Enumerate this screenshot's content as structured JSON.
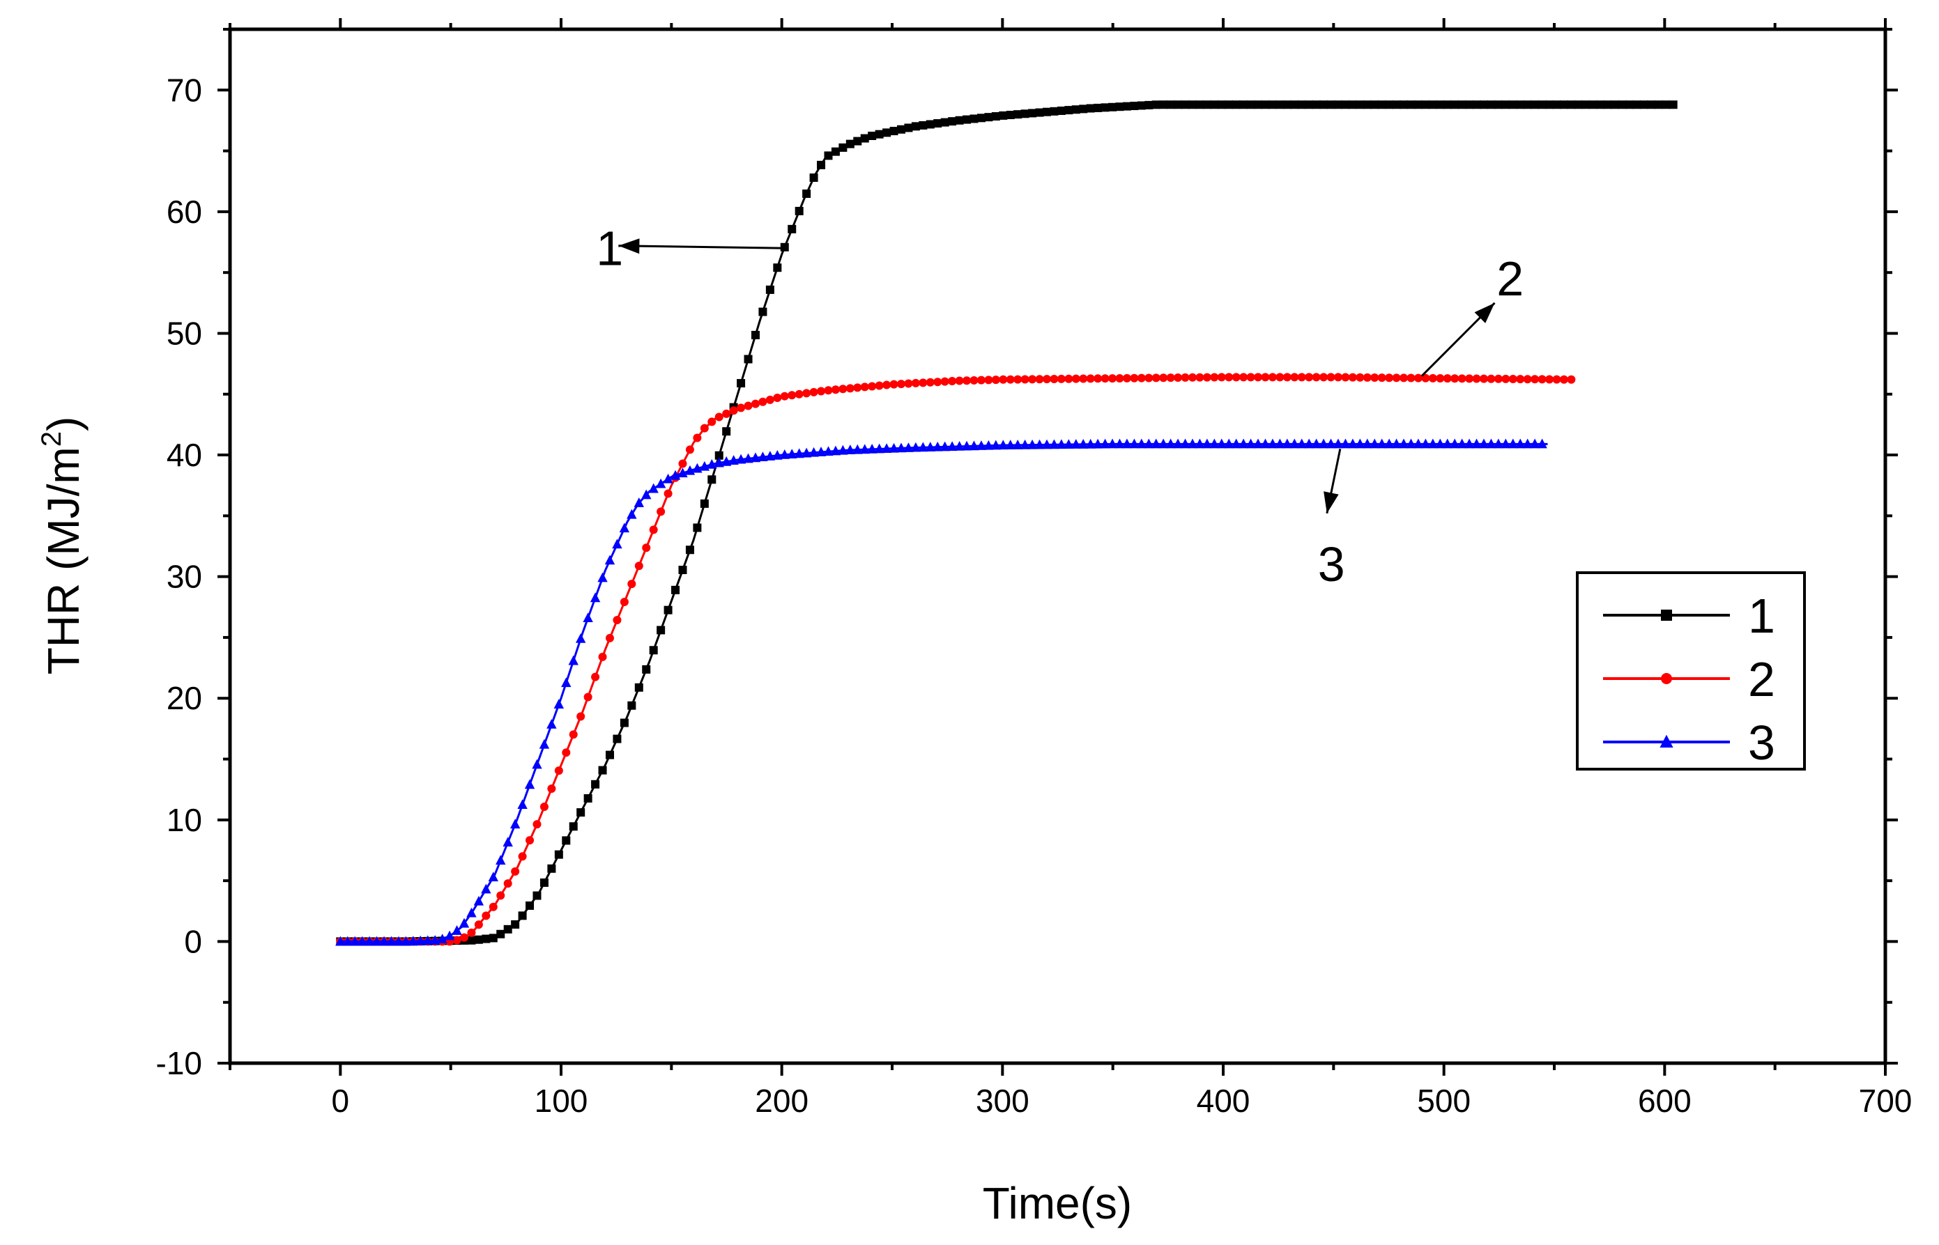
{
  "chart_data": {
    "type": "line",
    "title": "",
    "xlabel": "Time(s)",
    "ylabel_main": "THR (MJ/m",
    "ylabel_sup": "2",
    "ylabel_close": ")",
    "xlim": [
      -50,
      700
    ],
    "ylim": [
      -10,
      75
    ],
    "x_ticks": [
      0,
      100,
      200,
      300,
      400,
      500,
      600,
      700
    ],
    "y_ticks": [
      -10,
      0,
      10,
      20,
      30,
      40,
      50,
      60,
      70
    ],
    "x_tick_labels": [
      "0",
      "100",
      "200",
      "300",
      "400",
      "500",
      "600",
      "700"
    ],
    "y_tick_labels": [
      "-10",
      "0",
      "10",
      "20",
      "30",
      "40",
      "50",
      "60",
      "70"
    ],
    "legend_position": "right",
    "series": [
      {
        "name": "1",
        "color": "#000000",
        "marker": "square",
        "x": [
          0,
          30,
          60,
          70,
          80,
          90,
          100,
          110,
          120,
          130,
          140,
          150,
          160,
          170,
          180,
          190,
          200,
          210,
          215,
          220,
          230,
          240,
          260,
          280,
          300,
          320,
          340,
          360,
          370,
          400,
          450,
          500,
          550,
          605
        ],
        "y": [
          0,
          0,
          0.1,
          0.3,
          1.5,
          4,
          7.5,
          11,
          14.5,
          18.5,
          23,
          28,
          33,
          39,
          45,
          51,
          56.5,
          61,
          63,
          64.5,
          65.5,
          66.2,
          67,
          67.5,
          67.9,
          68.2,
          68.5,
          68.7,
          68.8,
          68.8,
          68.8,
          68.8,
          68.8,
          68.8
        ]
      },
      {
        "name": "2",
        "color": "#ff0000",
        "marker": "circle",
        "x": [
          0,
          30,
          50,
          55,
          60,
          70,
          80,
          90,
          100,
          110,
          120,
          130,
          140,
          150,
          160,
          165,
          170,
          180,
          190,
          200,
          220,
          250,
          280,
          300,
          350,
          400,
          450,
          500,
          558
        ],
        "y": [
          0,
          0,
          0,
          0.2,
          0.8,
          3,
          6,
          10,
          14.5,
          19,
          24,
          28.5,
          33,
          37.5,
          41,
          42.2,
          43,
          43.8,
          44.3,
          44.8,
          45.3,
          45.8,
          46.1,
          46.2,
          46.3,
          46.4,
          46.4,
          46.3,
          46.2
        ]
      },
      {
        "name": "3",
        "color": "#0000ff",
        "marker": "triangle",
        "x": [
          0,
          30,
          45,
          50,
          55,
          60,
          70,
          80,
          90,
          100,
          110,
          120,
          130,
          135,
          140,
          150,
          160,
          170,
          180,
          200,
          230,
          260,
          300,
          350,
          400,
          450,
          500,
          547
        ],
        "y": [
          0,
          0,
          0.1,
          0.5,
          1.2,
          2.5,
          5.5,
          10,
          15,
          20,
          25.5,
          30.5,
          34.5,
          36,
          37,
          38.2,
          38.8,
          39.3,
          39.6,
          40,
          40.4,
          40.6,
          40.8,
          40.9,
          40.9,
          40.9,
          40.9,
          40.9
        ]
      }
    ],
    "annotations": [
      {
        "text": "1",
        "text_at": [
          122,
          57
        ],
        "arrow_from": [
          202,
          57
        ],
        "arrow_to": [
          126,
          57.2
        ]
      },
      {
        "text": "2",
        "text_at": [
          530,
          54.5
        ],
        "arrow_from": [
          490,
          46.5
        ],
        "arrow_to": [
          523,
          52.5
        ]
      },
      {
        "text": "3",
        "text_at": [
          449,
          31
        ],
        "arrow_from": [
          453,
          40.5
        ],
        "arrow_to": [
          447,
          35.2
        ]
      }
    ]
  }
}
